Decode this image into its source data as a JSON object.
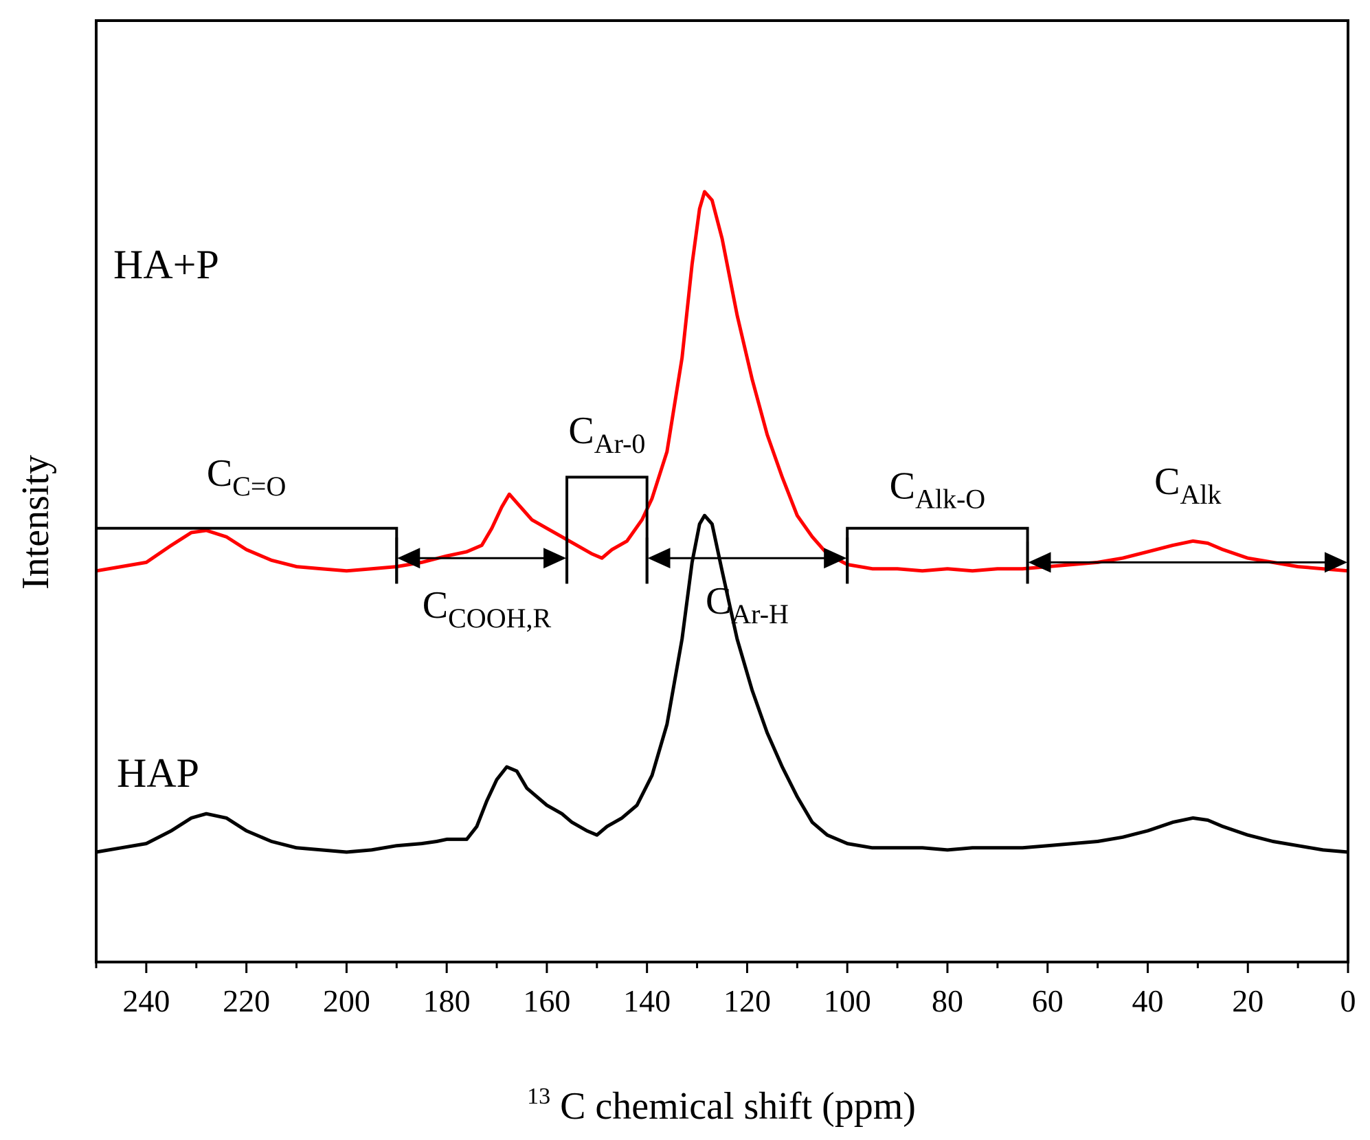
{
  "chart_data": {
    "type": "line",
    "title": "",
    "xlabel_sup": "13",
    "xlabel": "C chemical shift (ppm)",
    "ylabel": "Intensity",
    "xlim": [
      250,
      0
    ],
    "ylim": [
      0,
      1.5
    ],
    "x_reversed": true,
    "y_ticks_shown": false,
    "grid": false,
    "x_ticks": [
      240,
      220,
      200,
      180,
      160,
      140,
      120,
      100,
      80,
      60,
      40,
      20,
      0
    ],
    "series": [
      {
        "name": "HA+P",
        "label": "HA+P",
        "color": "#ff0000",
        "offset": 0.66,
        "points": [
          [
            250,
            0.0
          ],
          [
            245,
            0.01
          ],
          [
            240,
            0.02
          ],
          [
            235,
            0.06
          ],
          [
            231,
            0.09
          ],
          [
            228,
            0.095
          ],
          [
            224,
            0.08
          ],
          [
            220,
            0.05
          ],
          [
            215,
            0.025
          ],
          [
            210,
            0.01
          ],
          [
            205,
            0.005
          ],
          [
            200,
            0.0
          ],
          [
            195,
            0.005
          ],
          [
            190,
            0.01
          ],
          [
            185,
            0.02
          ],
          [
            180,
            0.035
          ],
          [
            176,
            0.045
          ],
          [
            173,
            0.06
          ],
          [
            171,
            0.1
          ],
          [
            169,
            0.15
          ],
          [
            167.5,
            0.18
          ],
          [
            166,
            0.16
          ],
          [
            163,
            0.12
          ],
          [
            160,
            0.1
          ],
          [
            157,
            0.08
          ],
          [
            154,
            0.06
          ],
          [
            151,
            0.04
          ],
          [
            149,
            0.03
          ],
          [
            147,
            0.05
          ],
          [
            144,
            0.07
          ],
          [
            141,
            0.12
          ],
          [
            139,
            0.17
          ],
          [
            136,
            0.28
          ],
          [
            133,
            0.5
          ],
          [
            131,
            0.72
          ],
          [
            129.5,
            0.85
          ],
          [
            128.5,
            0.89
          ],
          [
            127,
            0.87
          ],
          [
            125,
            0.78
          ],
          [
            122,
            0.6
          ],
          [
            119,
            0.45
          ],
          [
            116,
            0.32
          ],
          [
            113,
            0.22
          ],
          [
            110,
            0.13
          ],
          [
            107,
            0.08
          ],
          [
            104,
            0.04
          ],
          [
            100,
            0.015
          ],
          [
            95,
            0.005
          ],
          [
            90,
            0.005
          ],
          [
            85,
            0.0
          ],
          [
            80,
            0.005
          ],
          [
            75,
            0.0
          ],
          [
            70,
            0.005
          ],
          [
            65,
            0.005
          ],
          [
            60,
            0.01
          ],
          [
            55,
            0.015
          ],
          [
            50,
            0.02
          ],
          [
            45,
            0.03
          ],
          [
            40,
            0.045
          ],
          [
            35,
            0.06
          ],
          [
            31,
            0.07
          ],
          [
            28,
            0.065
          ],
          [
            25,
            0.05
          ],
          [
            20,
            0.03
          ],
          [
            15,
            0.02
          ],
          [
            10,
            0.01
          ],
          [
            5,
            0.005
          ],
          [
            0,
            0.0
          ]
        ]
      },
      {
        "name": "HAP",
        "label": "HAP",
        "color": "#000000",
        "offset": 0.0,
        "points": [
          [
            250,
            0.0
          ],
          [
            245,
            0.01
          ],
          [
            240,
            0.02
          ],
          [
            235,
            0.05
          ],
          [
            231,
            0.08
          ],
          [
            228,
            0.09
          ],
          [
            224,
            0.08
          ],
          [
            220,
            0.05
          ],
          [
            215,
            0.025
          ],
          [
            210,
            0.01
          ],
          [
            205,
            0.005
          ],
          [
            200,
            0.0
          ],
          [
            195,
            0.005
          ],
          [
            190,
            0.015
          ],
          [
            185,
            0.02
          ],
          [
            182,
            0.025
          ],
          [
            180,
            0.03
          ],
          [
            176,
            0.03
          ],
          [
            174,
            0.06
          ],
          [
            172,
            0.12
          ],
          [
            170,
            0.17
          ],
          [
            168,
            0.2
          ],
          [
            166,
            0.19
          ],
          [
            164,
            0.15
          ],
          [
            160,
            0.11
          ],
          [
            157,
            0.09
          ],
          [
            155,
            0.07
          ],
          [
            152,
            0.05
          ],
          [
            150,
            0.04
          ],
          [
            148,
            0.06
          ],
          [
            145,
            0.08
          ],
          [
            142,
            0.11
          ],
          [
            139,
            0.18
          ],
          [
            136,
            0.3
          ],
          [
            133,
            0.5
          ],
          [
            131,
            0.68
          ],
          [
            129.5,
            0.77
          ],
          [
            128.5,
            0.79
          ],
          [
            127,
            0.77
          ],
          [
            125,
            0.66
          ],
          [
            122,
            0.5
          ],
          [
            119,
            0.38
          ],
          [
            116,
            0.28
          ],
          [
            113,
            0.2
          ],
          [
            110,
            0.13
          ],
          [
            107,
            0.07
          ],
          [
            104,
            0.04
          ],
          [
            100,
            0.02
          ],
          [
            95,
            0.01
          ],
          [
            90,
            0.01
          ],
          [
            85,
            0.01
          ],
          [
            80,
            0.005
          ],
          [
            75,
            0.01
          ],
          [
            70,
            0.01
          ],
          [
            65,
            0.01
          ],
          [
            60,
            0.015
          ],
          [
            55,
            0.02
          ],
          [
            50,
            0.025
          ],
          [
            45,
            0.035
          ],
          [
            40,
            0.05
          ],
          [
            35,
            0.07
          ],
          [
            31,
            0.08
          ],
          [
            28,
            0.075
          ],
          [
            25,
            0.06
          ],
          [
            20,
            0.04
          ],
          [
            15,
            0.025
          ],
          [
            10,
            0.015
          ],
          [
            5,
            0.005
          ],
          [
            0,
            0.0
          ]
        ]
      }
    ],
    "regions": [
      {
        "id": "c-co",
        "label_main": "C",
        "label_sub": "C=O",
        "type": "bracket",
        "x_from": 250,
        "x_to": 190,
        "bracket_y": 0.76,
        "label_x": 220,
        "label_y": 0.86
      },
      {
        "id": "c-cooh",
        "label_main": "C",
        "label_sub": "COOH,R",
        "type": "arrow",
        "x_from": 190,
        "x_to": 156,
        "arrow_y": 0.69,
        "label_x": 172,
        "label_y": 0.55
      },
      {
        "id": "c-ar-o",
        "label_main": "C",
        "label_sub": "Ar-0",
        "type": "bracket",
        "x_from": 156,
        "x_to": 140,
        "bracket_y": 0.88,
        "label_x": 148,
        "label_y": 0.96
      },
      {
        "id": "c-ar-h",
        "label_main": "C",
        "label_sub": "Ar-H",
        "type": "arrow",
        "x_from": 140,
        "x_to": 100,
        "arrow_y": 0.69,
        "label_x": 120,
        "label_y": 0.56
      },
      {
        "id": "c-alk-o",
        "label_main": "C",
        "label_sub": "Alk-O",
        "type": "bracket",
        "x_from": 100,
        "x_to": 64,
        "bracket_y": 0.76,
        "label_x": 82,
        "label_y": 0.83
      },
      {
        "id": "c-alk",
        "label_main": "C",
        "label_sub": "Alk",
        "type": "arrow",
        "x_from": 64,
        "x_to": 0,
        "arrow_y": 0.68,
        "label_x": 32,
        "label_y": 0.84
      }
    ],
    "bracket_bottom_y": 0.63
  }
}
